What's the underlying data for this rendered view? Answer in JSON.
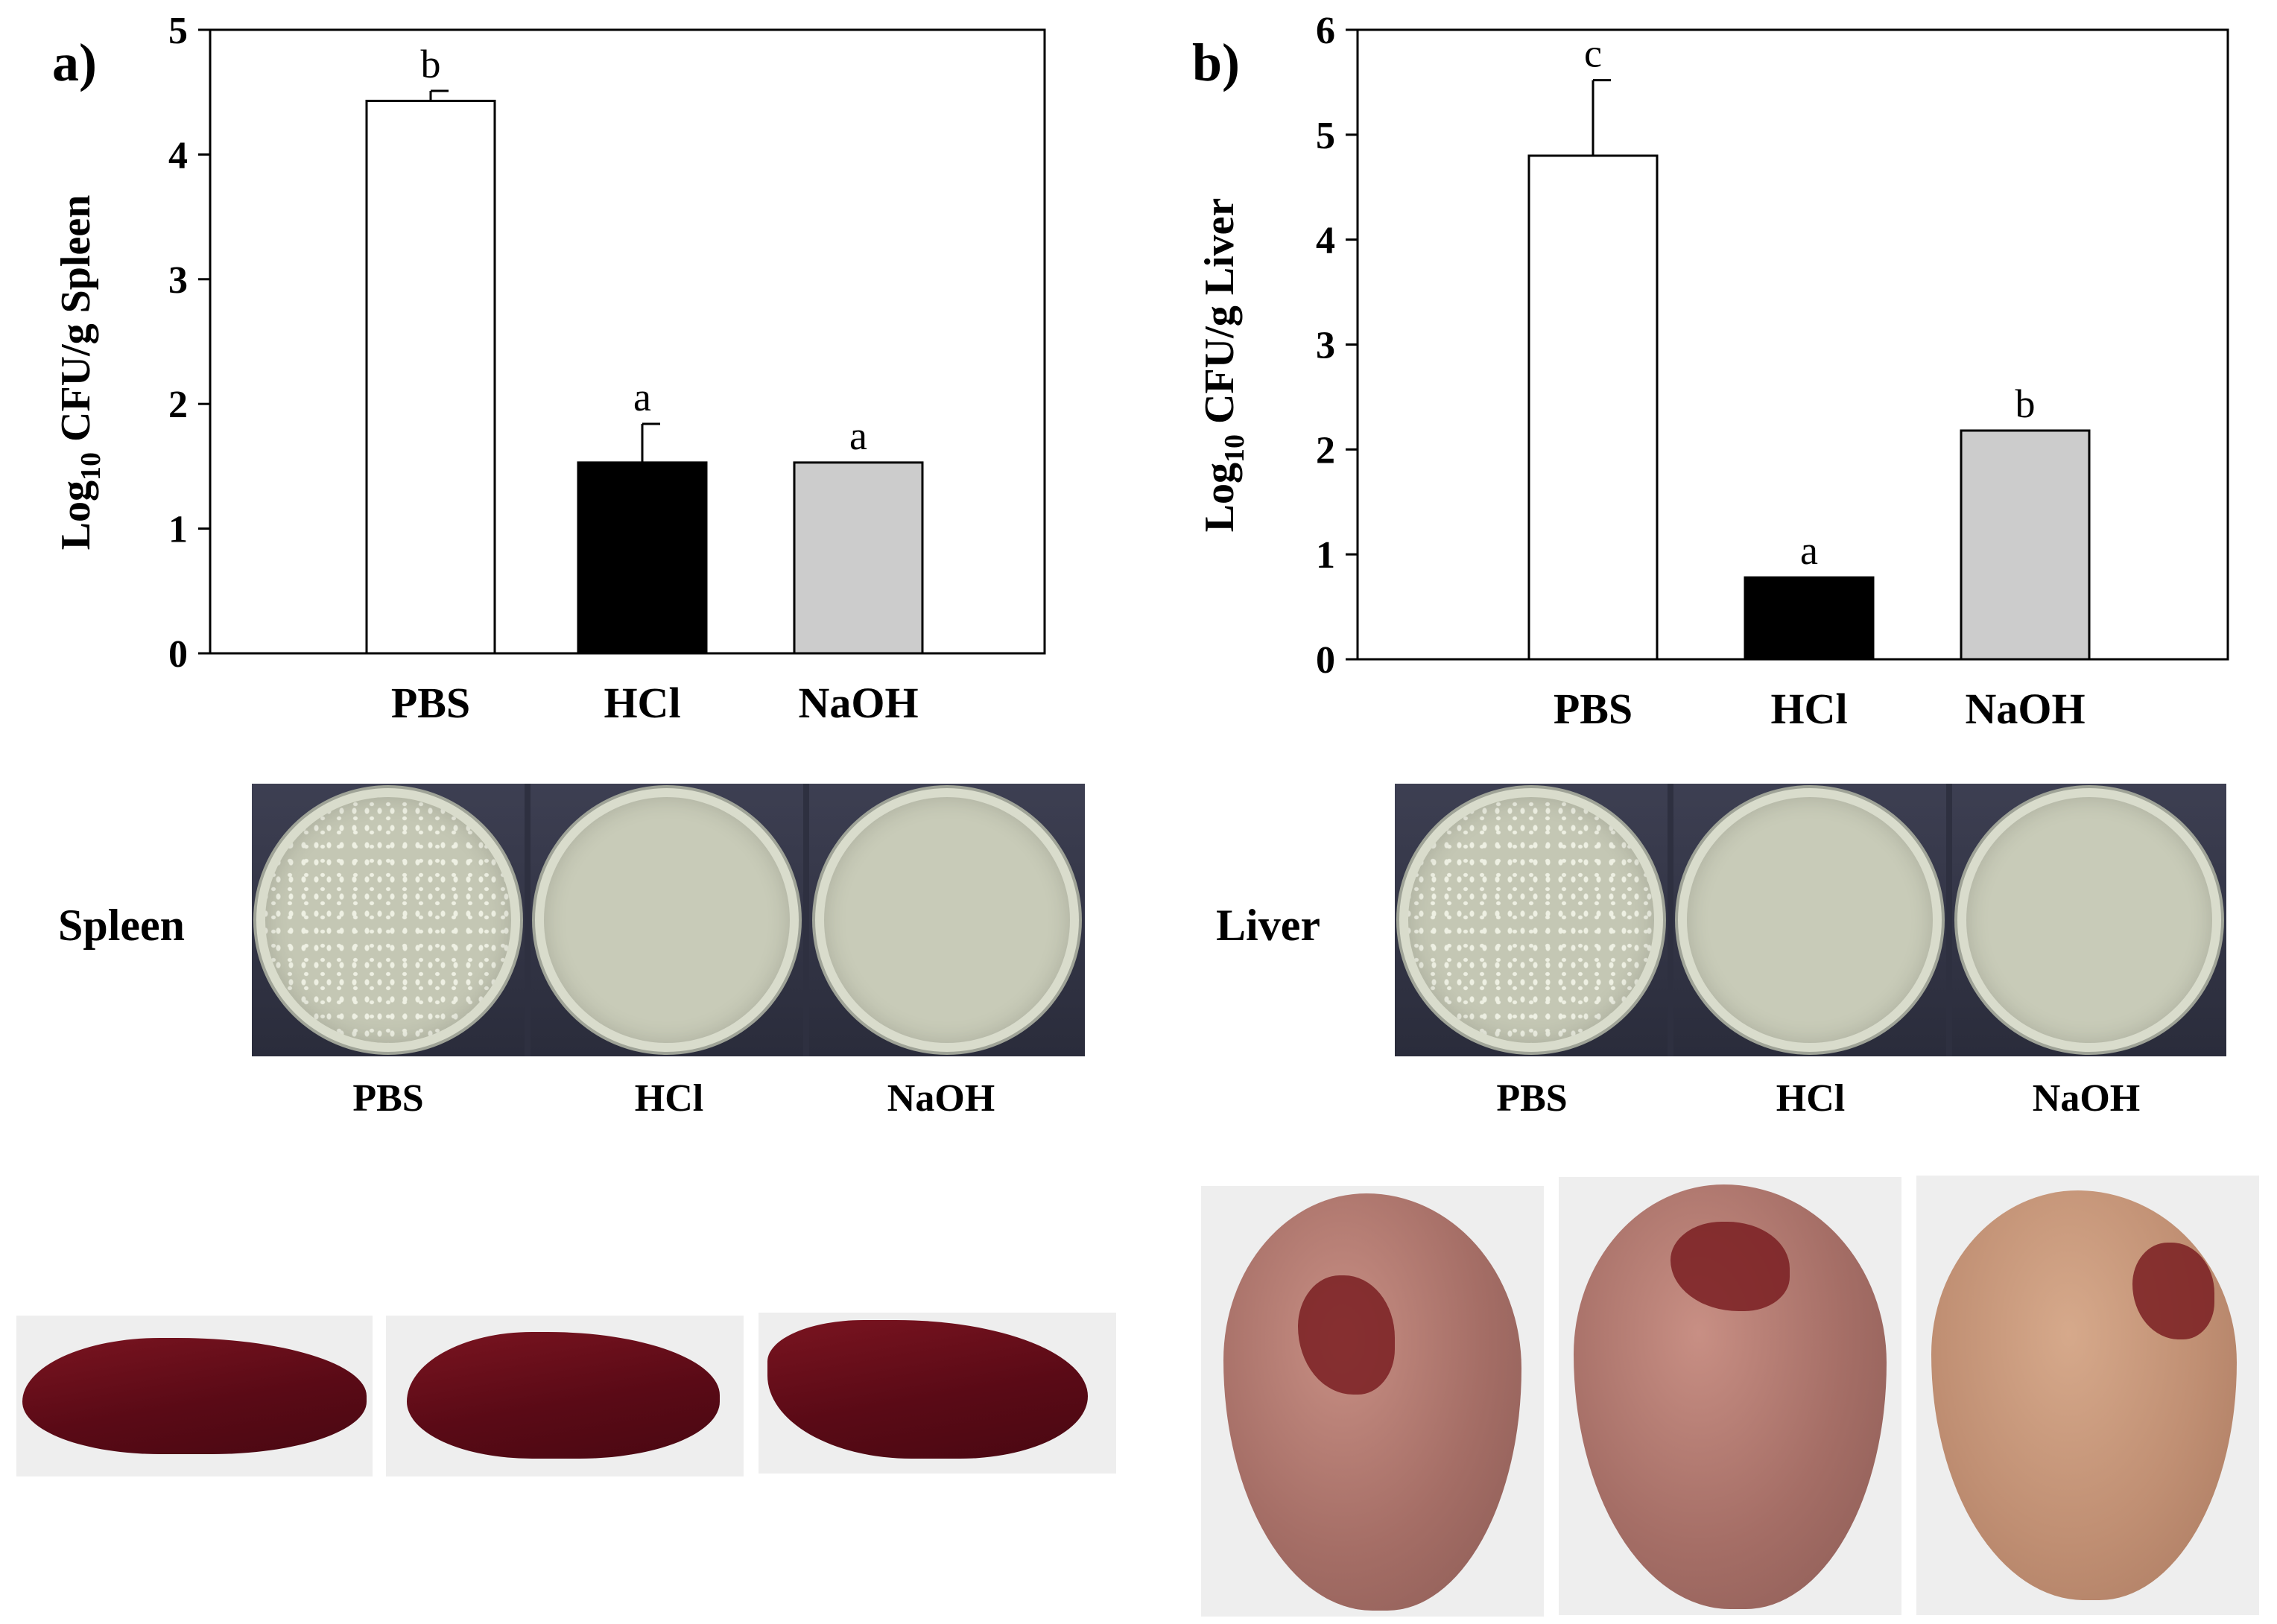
{
  "chart_data": [
    {
      "type": "bar",
      "panel": "a)",
      "ylabel": "Log10 CFU/g Spleen",
      "ylabel_main": "Log",
      "ylabel_sub": "10",
      "ylabel_rest": " CFU/g Spleen",
      "ylim": [
        0,
        5
      ],
      "yticks": [
        0,
        1,
        2,
        3,
        4,
        5
      ],
      "categories": [
        "PBS",
        "HCl",
        "NaOH"
      ],
      "values": [
        4.43,
        1.53,
        1.53
      ],
      "errors": [
        0.08,
        0.31,
        0
      ],
      "significance": [
        "b",
        "a",
        "a"
      ],
      "colors": [
        "#ffffff",
        "#000000",
        "#cccccc"
      ]
    },
    {
      "type": "bar",
      "panel": "b)",
      "ylabel": "Log10 CFU/g Liver",
      "ylabel_main": "Log",
      "ylabel_sub": "10",
      "ylabel_rest": " CFU/g Liver",
      "ylim": [
        0,
        6
      ],
      "yticks": [
        0,
        1,
        2,
        3,
        4,
        5,
        6
      ],
      "categories": [
        "PBS",
        "HCl",
        "NaOH"
      ],
      "values": [
        4.8,
        0.78,
        2.18
      ],
      "errors": [
        0.72,
        0,
        0
      ],
      "significance": [
        "c",
        "a",
        "b"
      ],
      "colors": [
        "#ffffff",
        "#000000",
        "#cccccc"
      ]
    }
  ],
  "plates": {
    "spleen": {
      "organ": "Spleen",
      "labels": [
        "PBS",
        "HCl",
        "NaOH"
      ]
    },
    "liver": {
      "organ": "Liver",
      "labels": [
        "PBS",
        "HCl",
        "NaOH"
      ]
    }
  }
}
